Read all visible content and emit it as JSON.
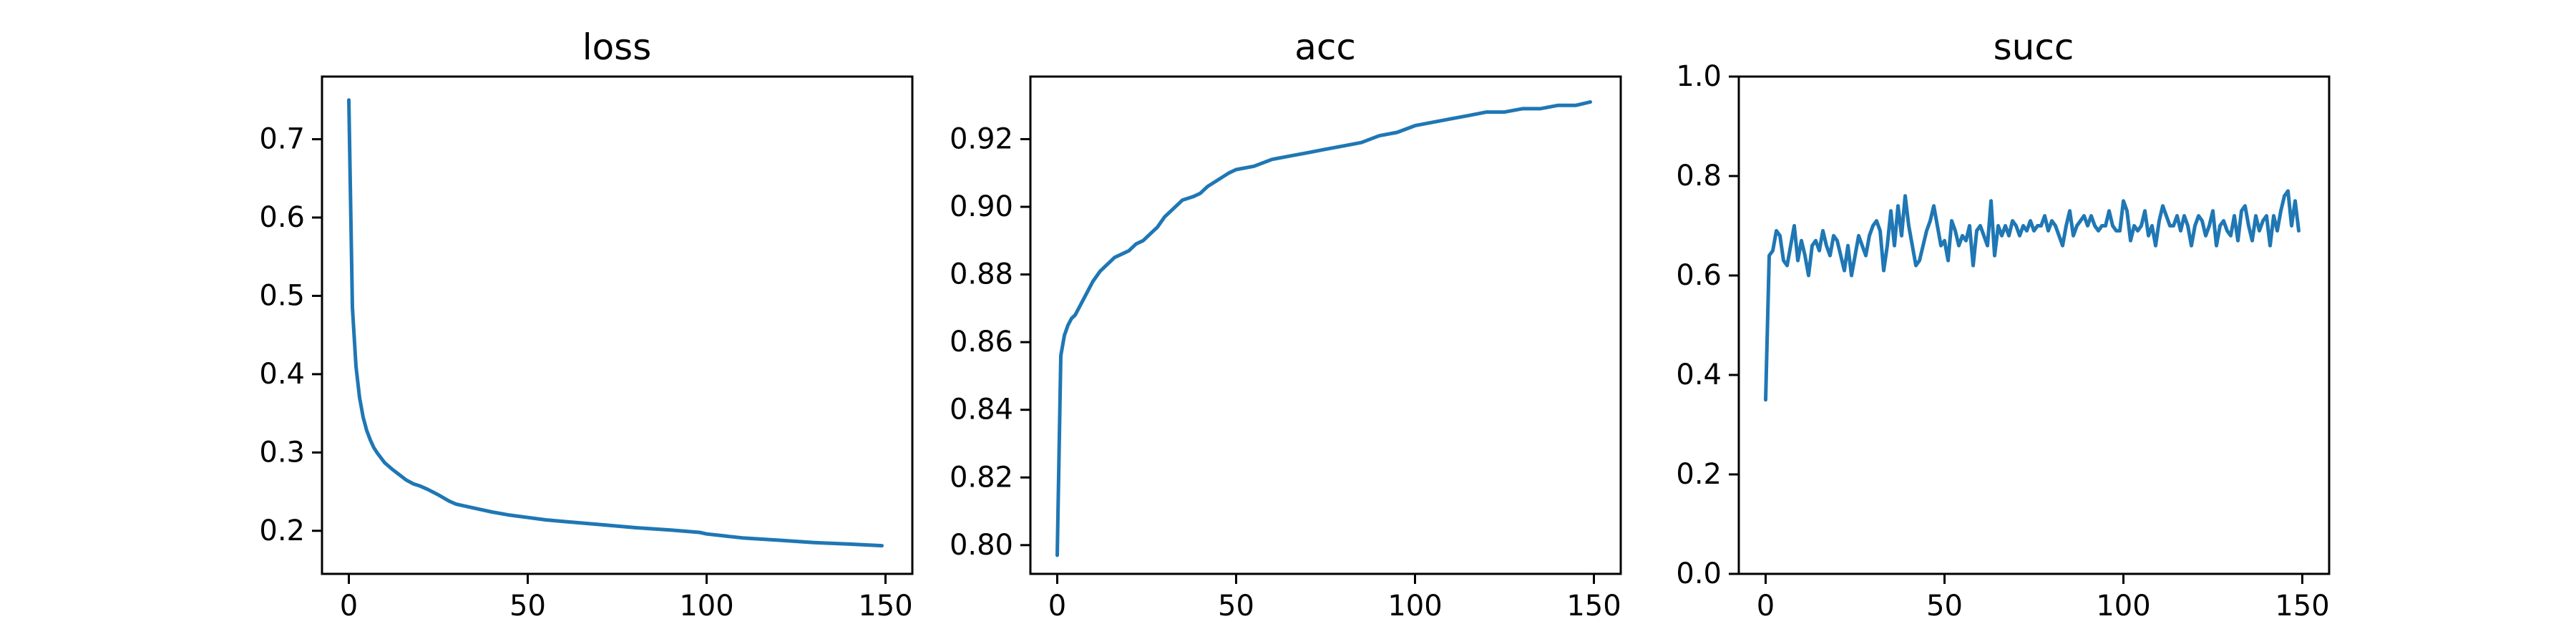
{
  "chart_data": [
    {
      "type": "line",
      "title": "loss",
      "xlabel": "",
      "ylabel": "",
      "xlim": [
        -7.5,
        157.5
      ],
      "ylim": [
        0.145,
        0.78
      ],
      "xticks": [
        0,
        50,
        100,
        150
      ],
      "yticks": [
        0.2,
        0.3,
        0.4,
        0.5,
        0.6,
        0.7
      ],
      "ytick_labels": [
        "0.2",
        "0.3",
        "0.4",
        "0.5",
        "0.6",
        "0.7"
      ],
      "grid": false,
      "color": "#1f77b4",
      "series": [
        {
          "x": [
            0,
            1,
            2,
            3,
            4,
            5,
            6,
            7,
            8,
            9,
            10,
            12,
            14,
            16,
            18,
            20,
            22,
            25,
            28,
            30,
            35,
            40,
            45,
            50,
            55,
            60,
            70,
            80,
            90,
            98,
            100,
            110,
            120,
            130,
            140,
            149
          ],
          "values": [
            0.75,
            0.485,
            0.41,
            0.37,
            0.345,
            0.328,
            0.316,
            0.306,
            0.299,
            0.293,
            0.287,
            0.279,
            0.272,
            0.265,
            0.26,
            0.257,
            0.253,
            0.246,
            0.238,
            0.234,
            0.229,
            0.224,
            0.22,
            0.217,
            0.214,
            0.212,
            0.208,
            0.204,
            0.201,
            0.198,
            0.196,
            0.191,
            0.188,
            0.185,
            0.183,
            0.181
          ]
        }
      ]
    },
    {
      "type": "line",
      "title": "acc",
      "xlabel": "",
      "ylabel": "",
      "xlim": [
        -7.5,
        157.5
      ],
      "ylim": [
        0.7915,
        0.9385
      ],
      "xticks": [
        0,
        50,
        100,
        150
      ],
      "yticks": [
        0.8,
        0.82,
        0.84,
        0.86,
        0.88,
        0.9,
        0.92
      ],
      "ytick_labels": [
        "0.80",
        "0.82",
        "0.84",
        "0.86",
        "0.88",
        "0.90",
        "0.92"
      ],
      "grid": false,
      "color": "#1f77b4",
      "series": [
        {
          "x": [
            0,
            1,
            2,
            3,
            4,
            5,
            6,
            8,
            10,
            12,
            14,
            16,
            18,
            20,
            22,
            24,
            26,
            28,
            30,
            32,
            35,
            38,
            40,
            42,
            45,
            48,
            50,
            55,
            60,
            65,
            70,
            75,
            80,
            85,
            90,
            95,
            100,
            105,
            110,
            115,
            120,
            125,
            130,
            135,
            140,
            145,
            149
          ],
          "values": [
            0.797,
            0.856,
            0.862,
            0.865,
            0.867,
            0.868,
            0.87,
            0.874,
            0.878,
            0.881,
            0.883,
            0.885,
            0.886,
            0.887,
            0.889,
            0.89,
            0.892,
            0.894,
            0.897,
            0.899,
            0.902,
            0.903,
            0.904,
            0.906,
            0.908,
            0.91,
            0.911,
            0.912,
            0.914,
            0.915,
            0.916,
            0.917,
            0.918,
            0.919,
            0.921,
            0.922,
            0.924,
            0.925,
            0.926,
            0.927,
            0.928,
            0.928,
            0.929,
            0.929,
            0.93,
            0.93,
            0.931
          ]
        }
      ]
    },
    {
      "type": "line",
      "title": "succ",
      "xlabel": "",
      "ylabel": "",
      "xlim": [
        -7.5,
        157.5
      ],
      "ylim": [
        0.0,
        1.0
      ],
      "xticks": [
        0,
        50,
        100,
        150
      ],
      "yticks": [
        0.0,
        0.2,
        0.4,
        0.6,
        0.8,
        1.0
      ],
      "ytick_labels": [
        "0.0",
        "0.2",
        "0.4",
        "0.6",
        "0.8",
        "1.0"
      ],
      "grid": false,
      "color": "#1f77b4",
      "series": [
        {
          "x": [
            0,
            1,
            2,
            3,
            4,
            5,
            6,
            7,
            8,
            9,
            10,
            11,
            12,
            13,
            14,
            15,
            16,
            17,
            18,
            19,
            20,
            21,
            22,
            23,
            24,
            25,
            26,
            27,
            28,
            29,
            30,
            31,
            32,
            33,
            34,
            35,
            36,
            37,
            38,
            39,
            40,
            41,
            42,
            43,
            44,
            45,
            46,
            47,
            48,
            49,
            50,
            51,
            52,
            53,
            54,
            55,
            56,
            57,
            58,
            59,
            60,
            61,
            62,
            63,
            64,
            65,
            66,
            67,
            68,
            69,
            70,
            71,
            72,
            73,
            74,
            75,
            76,
            77,
            78,
            79,
            80,
            81,
            82,
            83,
            84,
            85,
            86,
            87,
            88,
            89,
            90,
            91,
            92,
            93,
            94,
            95,
            96,
            97,
            98,
            99,
            100,
            101,
            102,
            103,
            104,
            105,
            106,
            107,
            108,
            109,
            110,
            111,
            112,
            113,
            114,
            115,
            116,
            117,
            118,
            119,
            120,
            121,
            122,
            123,
            124,
            125,
            126,
            127,
            128,
            129,
            130,
            131,
            132,
            133,
            134,
            135,
            136,
            137,
            138,
            139,
            140,
            141,
            142,
            143,
            144,
            145,
            146,
            147,
            148,
            149
          ],
          "values": [
            0.35,
            0.64,
            0.65,
            0.69,
            0.68,
            0.63,
            0.62,
            0.66,
            0.7,
            0.63,
            0.67,
            0.64,
            0.6,
            0.66,
            0.67,
            0.65,
            0.69,
            0.66,
            0.64,
            0.68,
            0.67,
            0.64,
            0.61,
            0.66,
            0.6,
            0.64,
            0.68,
            0.66,
            0.64,
            0.68,
            0.7,
            0.71,
            0.69,
            0.61,
            0.66,
            0.73,
            0.66,
            0.74,
            0.68,
            0.76,
            0.7,
            0.66,
            0.62,
            0.63,
            0.66,
            0.69,
            0.71,
            0.74,
            0.7,
            0.66,
            0.67,
            0.63,
            0.71,
            0.69,
            0.66,
            0.68,
            0.67,
            0.7,
            0.62,
            0.69,
            0.7,
            0.68,
            0.66,
            0.75,
            0.64,
            0.7,
            0.68,
            0.7,
            0.68,
            0.71,
            0.7,
            0.68,
            0.7,
            0.69,
            0.71,
            0.69,
            0.7,
            0.7,
            0.72,
            0.69,
            0.71,
            0.7,
            0.68,
            0.66,
            0.7,
            0.73,
            0.68,
            0.7,
            0.71,
            0.72,
            0.7,
            0.72,
            0.7,
            0.69,
            0.7,
            0.7,
            0.73,
            0.7,
            0.69,
            0.69,
            0.75,
            0.73,
            0.67,
            0.7,
            0.69,
            0.7,
            0.73,
            0.68,
            0.7,
            0.66,
            0.71,
            0.74,
            0.72,
            0.7,
            0.7,
            0.72,
            0.69,
            0.72,
            0.7,
            0.66,
            0.7,
            0.72,
            0.71,
            0.68,
            0.7,
            0.73,
            0.66,
            0.7,
            0.71,
            0.69,
            0.68,
            0.72,
            0.67,
            0.73,
            0.74,
            0.7,
            0.67,
            0.72,
            0.69,
            0.71,
            0.72,
            0.66,
            0.72,
            0.69,
            0.73,
            0.76,
            0.77,
            0.7,
            0.75,
            0.69
          ]
        }
      ]
    }
  ]
}
